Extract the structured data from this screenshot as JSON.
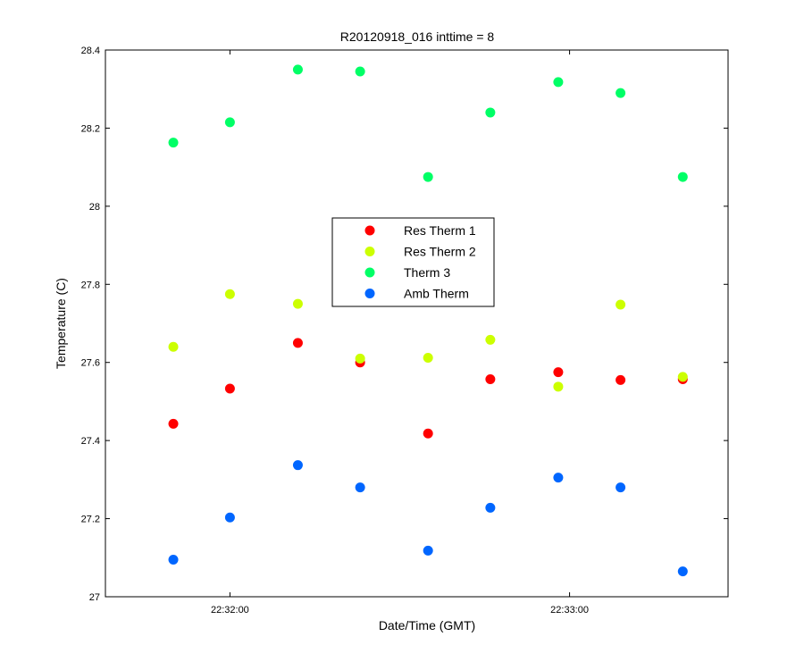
{
  "chart_data": {
    "type": "scatter",
    "title": "R20120918_016 inttime = 8",
    "xlabel": "Date/Time (GMT)",
    "ylabel": "Temperature (C)",
    "xlim": [
      "22:31:38",
      "22:33:28"
    ],
    "ylim": [
      27.0,
      28.4
    ],
    "x_ticks": [
      "22:32:00",
      "22:33:00"
    ],
    "y_ticks": [
      "27",
      "27.2",
      "27.4",
      "27.6",
      "27.8",
      "28",
      "28.2",
      "28.4"
    ],
    "grid": false,
    "legend_position": "center",
    "x": [
      "22:31:50",
      "22:32:00",
      "22:32:12",
      "22:32:23",
      "22:32:35",
      "22:32:46",
      "22:32:58",
      "22:33:09",
      "22:33:20"
    ],
    "series": [
      {
        "name": "Res Therm 1",
        "color": "#ff0000",
        "values": [
          27.443,
          27.533,
          27.65,
          27.6,
          27.418,
          27.557,
          27.575,
          27.555,
          27.557
        ]
      },
      {
        "name": "Res Therm 2",
        "color": "#ccff00",
        "values": [
          27.64,
          27.775,
          27.75,
          27.61,
          27.612,
          27.658,
          27.538,
          27.748,
          27.563
        ]
      },
      {
        "name": "Therm 3",
        "color": "#00ff66",
        "values": [
          28.163,
          28.215,
          28.35,
          28.345,
          28.075,
          28.24,
          28.318,
          28.29,
          28.075
        ]
      },
      {
        "name": "Amb Therm",
        "color": "#0066ff",
        "values": [
          27.095,
          27.203,
          27.337,
          27.28,
          27.118,
          27.228,
          27.305,
          27.28,
          27.065
        ]
      }
    ]
  }
}
